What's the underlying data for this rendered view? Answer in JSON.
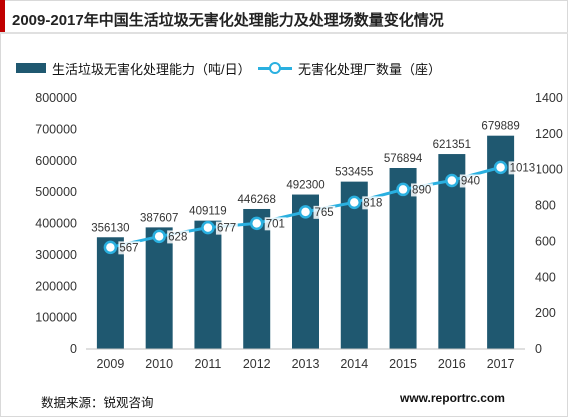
{
  "header": {
    "title": "2009-2017年中国生活垃圾无害化处理能力及处理场数量变化情况"
  },
  "chart_data": {
    "type": "bar",
    "categories": [
      "2009",
      "2010",
      "2011",
      "2012",
      "2013",
      "2014",
      "2015",
      "2016",
      "2017"
    ],
    "series": [
      {
        "name": "生活垃圾无害化处理能力（吨/日）",
        "type": "bar",
        "axis": "left",
        "color": "#1f5870",
        "values": [
          356130,
          387607,
          409119,
          446268,
          492300,
          533455,
          576894,
          621351,
          679889
        ]
      },
      {
        "name": "无害化处理厂数量（座）",
        "type": "line",
        "axis": "right",
        "color": "#2ab0e0",
        "values": [
          567,
          628,
          677,
          701,
          765,
          818,
          890,
          940,
          1013
        ]
      }
    ],
    "y_left": {
      "range": [
        0,
        800000
      ],
      "ticks": [
        "0",
        "100000",
        "200000",
        "300000",
        "400000",
        "500000",
        "600000",
        "700000",
        "800000"
      ]
    },
    "y_right": {
      "range": [
        0,
        1400
      ],
      "ticks": [
        "0",
        "200",
        "400",
        "600",
        "800",
        "1000",
        "1200",
        "1400"
      ]
    },
    "grid": false,
    "legend_position": "top"
  },
  "footer": {
    "source": "数据来源：锐观咨询",
    "website": "www.reportrc.com"
  }
}
